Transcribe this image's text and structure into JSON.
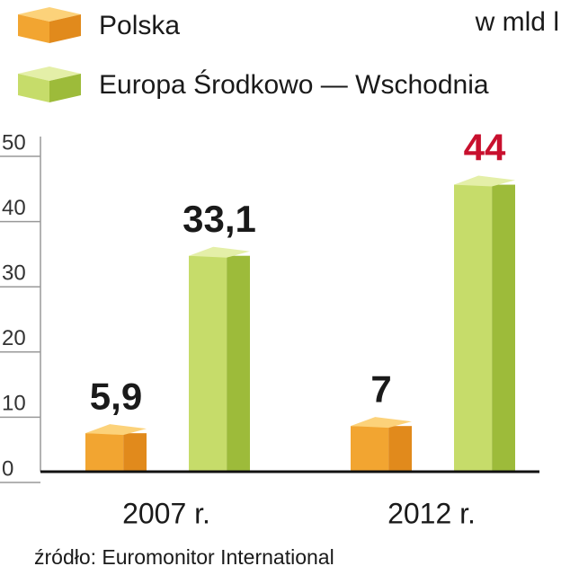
{
  "chart_data": {
    "type": "bar3d",
    "unit": "w mld l",
    "source": "źródło: Euromonitor International",
    "categories": [
      "2007 r.",
      "2012 r."
    ],
    "series": [
      {
        "name": "Polska",
        "color": "#f2a531",
        "side_color": "#e18a1c",
        "top_color": "#fcd27a",
        "values": [
          5.9,
          7
        ],
        "value_labels": [
          "5,9",
          "7"
        ],
        "label_colors": [
          "#1a1a1a",
          "#1a1a1a"
        ]
      },
      {
        "name": "Europa Środkowo — Wschodnia",
        "color": "#c6dc6a",
        "side_color": "#9dbb3a",
        "top_color": "#e4efa8",
        "values": [
          33.1,
          44
        ],
        "value_labels": [
          "33,1",
          "44"
        ],
        "label_colors": [
          "#1a1a1a",
          "#c8102e"
        ]
      }
    ],
    "ylim": [
      0,
      50
    ],
    "yticks": [
      0,
      10,
      20,
      30,
      40,
      50
    ]
  }
}
